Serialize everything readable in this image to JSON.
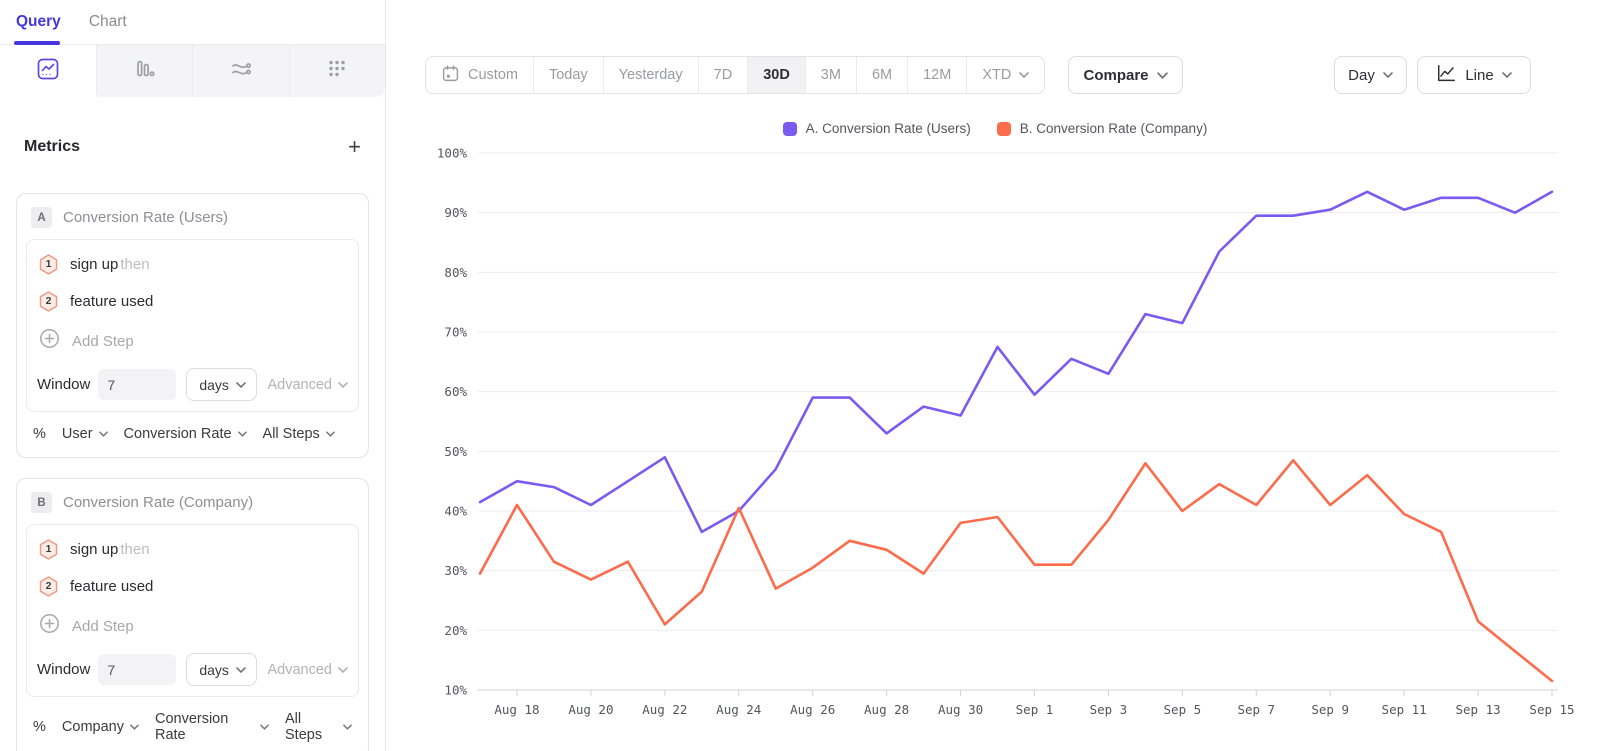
{
  "colors": {
    "accent": "#4536dd",
    "series_a": "#7b5af0",
    "series_b": "#fa6c4b",
    "step_badge_border": "#f2977e",
    "step_badge_fill": "#fdece6"
  },
  "sidebar": {
    "tabs": [
      {
        "label": "Query"
      },
      {
        "label": "Chart"
      }
    ],
    "view_icons": [
      "line-chart",
      "bar-chart",
      "flows",
      "grid-dots"
    ],
    "metrics_heading": "Metrics",
    "add_metric_label": "+",
    "cards": [
      {
        "badge": "A",
        "title": "Conversion Rate (Users)",
        "steps": [
          {
            "num": "1",
            "label": "sign up",
            "suffix": "then"
          },
          {
            "num": "2",
            "label": "feature used",
            "suffix": ""
          }
        ],
        "add_step_label": "Add Step",
        "window_label": "Window",
        "window_value": "7",
        "window_unit": "days",
        "advanced_label": "Advanced",
        "measure_prefix": "%",
        "measure_dropdowns": [
          "User",
          "Conversion Rate",
          "All Steps"
        ]
      },
      {
        "badge": "B",
        "title": "Conversion Rate (Company)",
        "steps": [
          {
            "num": "1",
            "label": "sign up",
            "suffix": "then"
          },
          {
            "num": "2",
            "label": "feature used",
            "suffix": ""
          }
        ],
        "add_step_label": "Add Step",
        "window_label": "Window",
        "window_value": "7",
        "window_unit": "days",
        "advanced_label": "Advanced",
        "measure_prefix": "%",
        "measure_dropdowns": [
          "Company",
          "Conversion Rate",
          "All Steps"
        ]
      }
    ]
  },
  "toolbar": {
    "date_ranges": [
      {
        "label": "Custom"
      },
      {
        "label": "Today"
      },
      {
        "label": "Yesterday"
      },
      {
        "label": "7D"
      },
      {
        "label": "30D",
        "selected": true
      },
      {
        "label": "3M"
      },
      {
        "label": "6M"
      },
      {
        "label": "12M"
      },
      {
        "label": "XTD"
      }
    ],
    "compare_label": "Compare",
    "granularity_label": "Day",
    "chart_type_label": "Line"
  },
  "legend": [
    {
      "label": "A. Conversion Rate (Users)",
      "color": "#7b5af0"
    },
    {
      "label": "B. Conversion Rate (Company)",
      "color": "#fa6c4b"
    }
  ],
  "chart_data": {
    "type": "line",
    "x": [
      "Aug 17",
      "Aug 18",
      "Aug 19",
      "Aug 20",
      "Aug 21",
      "Aug 22",
      "Aug 23",
      "Aug 24",
      "Aug 25",
      "Aug 26",
      "Aug 27",
      "Aug 28",
      "Aug 29",
      "Aug 30",
      "Aug 31",
      "Sep 1",
      "Sep 2",
      "Sep 3",
      "Sep 4",
      "Sep 5",
      "Sep 6",
      "Sep 7",
      "Sep 8",
      "Sep 9",
      "Sep 10",
      "Sep 11",
      "Sep 12",
      "Sep 13",
      "Sep 14",
      "Sep 15"
    ],
    "x_tick_every": 2,
    "x_tick_start_index": 1,
    "series": [
      {
        "name": "A. Conversion Rate (Users)",
        "color": "#7b5af0",
        "values": [
          41.5,
          45,
          44,
          41,
          45,
          49,
          36.5,
          40,
          47,
          59,
          59,
          53,
          57.5,
          56,
          67.5,
          59.5,
          65.5,
          63,
          73,
          71.5,
          83.5,
          89.5,
          89.5,
          90.5,
          93.5,
          90.5,
          92.5,
          92.5,
          90,
          93.5
        ]
      },
      {
        "name": "B. Conversion Rate (Company)",
        "color": "#fa6c4b",
        "values": [
          29.5,
          41,
          31.5,
          28.5,
          31.5,
          21,
          26.5,
          40.5,
          27,
          30.5,
          35,
          33.5,
          29.5,
          38,
          39,
          31,
          31,
          38.5,
          48,
          40,
          44.5,
          41,
          48.5,
          41,
          46,
          39.5,
          36.5,
          21.5,
          16.5,
          11.5
        ]
      }
    ],
    "y_unit": "%",
    "y_step": 10,
    "ylim": [
      10,
      100
    ],
    "y_tick_labels": [
      "100%",
      "90%",
      "80%",
      "70%",
      "60%",
      "50%",
      "40%",
      "30%",
      "20%",
      "10%"
    ],
    "grid": true,
    "legend_position": "top-center"
  }
}
